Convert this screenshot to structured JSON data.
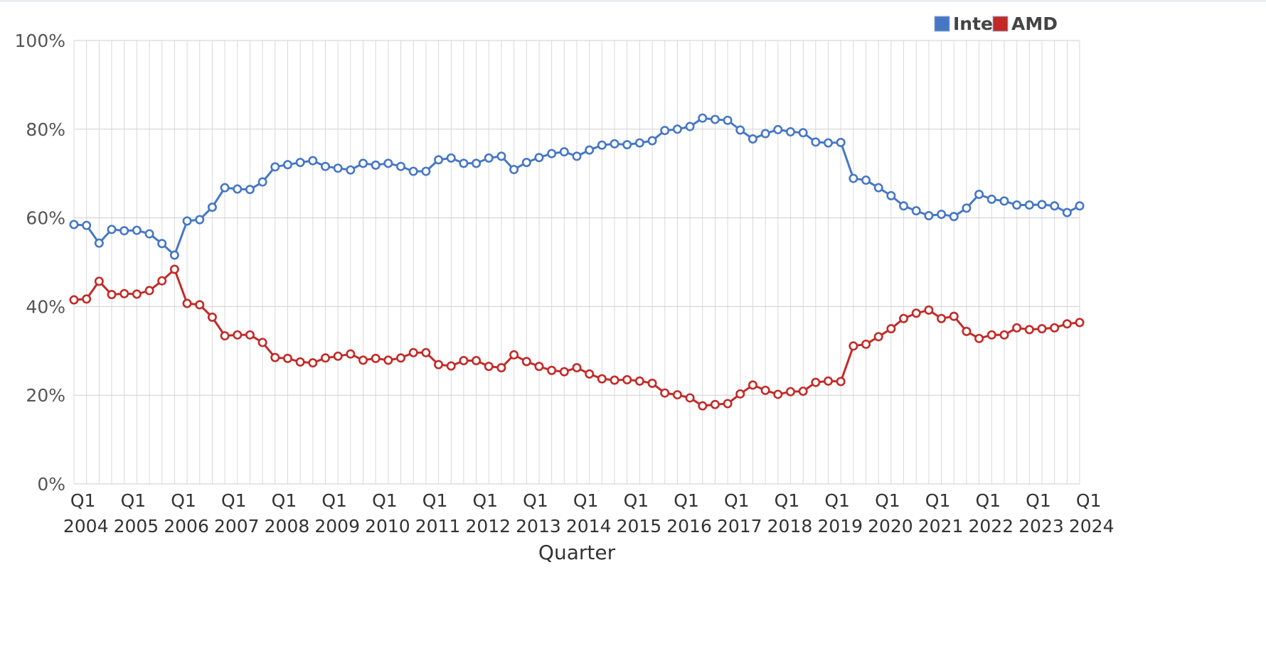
{
  "chart_data": {
    "type": "line",
    "xlabel": "Quarter",
    "ylabel": "",
    "ylim": [
      0,
      100
    ],
    "y_ticks": [
      "0%",
      "20%",
      "40%",
      "60%",
      "80%",
      "100%"
    ],
    "grid": true,
    "legend_position": "top-right",
    "x_tick_quarter_label": "Q1",
    "x_tick_years": [
      "2004",
      "2005",
      "2006",
      "2007",
      "2008",
      "2009",
      "2010",
      "2011",
      "2012",
      "2013",
      "2014",
      "2015",
      "2016",
      "2017",
      "2018",
      "2019",
      "2020",
      "2021",
      "2022",
      "2023",
      "2024"
    ],
    "x": [
      "2003 Q4",
      "2004 Q1",
      "2004 Q2",
      "2004 Q3",
      "2004 Q4",
      "2005 Q1",
      "2005 Q2",
      "2005 Q3",
      "2005 Q4",
      "2006 Q1",
      "2006 Q2",
      "2006 Q3",
      "2006 Q4",
      "2007 Q1",
      "2007 Q2",
      "2007 Q3",
      "2007 Q4",
      "2008 Q1",
      "2008 Q2",
      "2008 Q3",
      "2008 Q4",
      "2009 Q1",
      "2009 Q2",
      "2009 Q3",
      "2009 Q4",
      "2010 Q1",
      "2010 Q2",
      "2010 Q3",
      "2010 Q4",
      "2011 Q1",
      "2011 Q2",
      "2011 Q3",
      "2011 Q4",
      "2012 Q1",
      "2012 Q2",
      "2012 Q3",
      "2012 Q4",
      "2013 Q1",
      "2013 Q2",
      "2013 Q3",
      "2013 Q4",
      "2014 Q1",
      "2014 Q2",
      "2014 Q3",
      "2014 Q4",
      "2015 Q1",
      "2015 Q2",
      "2015 Q3",
      "2015 Q4",
      "2016 Q1",
      "2016 Q2",
      "2016 Q3",
      "2016 Q4",
      "2017 Q1",
      "2017 Q2",
      "2017 Q3",
      "2017 Q4",
      "2018 Q1",
      "2018 Q2",
      "2018 Q3",
      "2018 Q4",
      "2019 Q1",
      "2019 Q2",
      "2019 Q3",
      "2019 Q4",
      "2020 Q1",
      "2020 Q2",
      "2020 Q3",
      "2020 Q4",
      "2021 Q1",
      "2021 Q2",
      "2021 Q3",
      "2021 Q4",
      "2022 Q1",
      "2022 Q2",
      "2022 Q3",
      "2022 Q4",
      "2023 Q1",
      "2023 Q2",
      "2023 Q3",
      "2023 Q4"
    ],
    "series": [
      {
        "name": "Intel",
        "color": "#4677c6",
        "values": [
          58.5,
          58.3,
          54.3,
          57.4,
          57.1,
          57.2,
          56.4,
          54.2,
          51.6,
          59.3,
          59.6,
          62.4,
          66.8,
          66.5,
          66.4,
          68.1,
          71.5,
          72.0,
          72.5,
          72.9,
          71.6,
          71.2,
          70.8,
          72.3,
          71.9,
          72.3,
          71.6,
          70.5,
          70.5,
          73.1,
          73.5,
          72.3,
          72.3,
          73.5,
          73.9,
          70.9,
          72.5,
          73.6,
          74.5,
          74.9,
          73.9,
          75.3,
          76.4,
          76.7,
          76.5,
          76.9,
          77.4,
          79.7,
          80.0,
          80.6,
          82.5,
          82.2,
          82.0,
          79.8,
          77.8,
          79.0,
          79.9,
          79.4,
          79.2,
          77.1,
          76.9,
          77.0,
          68.9,
          68.5,
          66.8,
          65.0,
          62.7,
          61.6,
          60.5,
          60.8,
          60.3,
          62.2,
          65.3,
          64.2,
          63.8,
          62.9,
          62.9,
          63.0,
          62.7,
          61.2,
          62.7
        ]
      },
      {
        "name": "AMD",
        "color": "#c32a27",
        "values": [
          41.5,
          41.7,
          45.7,
          42.7,
          42.9,
          42.8,
          43.6,
          45.8,
          48.4,
          40.7,
          40.4,
          37.6,
          33.4,
          33.6,
          33.6,
          31.9,
          28.5,
          28.3,
          27.5,
          27.3,
          28.4,
          28.8,
          29.3,
          27.9,
          28.3,
          27.9,
          28.4,
          29.6,
          29.6,
          26.9,
          26.6,
          27.8,
          27.8,
          26.5,
          26.2,
          29.1,
          27.6,
          26.5,
          25.6,
          25.3,
          26.2,
          24.8,
          23.7,
          23.4,
          23.5,
          23.2,
          22.7,
          20.5,
          20.1,
          19.4,
          17.6,
          17.9,
          18.1,
          20.3,
          22.3,
          21.1,
          20.2,
          20.8,
          20.9,
          22.9,
          23.2,
          23.1,
          31.1,
          31.5,
          33.2,
          35.0,
          37.3,
          38.5,
          39.2,
          37.3,
          37.8,
          34.4,
          32.8,
          33.6,
          33.6,
          35.2,
          34.8,
          35.0,
          35.2,
          36.1,
          36.4
        ]
      }
    ]
  }
}
